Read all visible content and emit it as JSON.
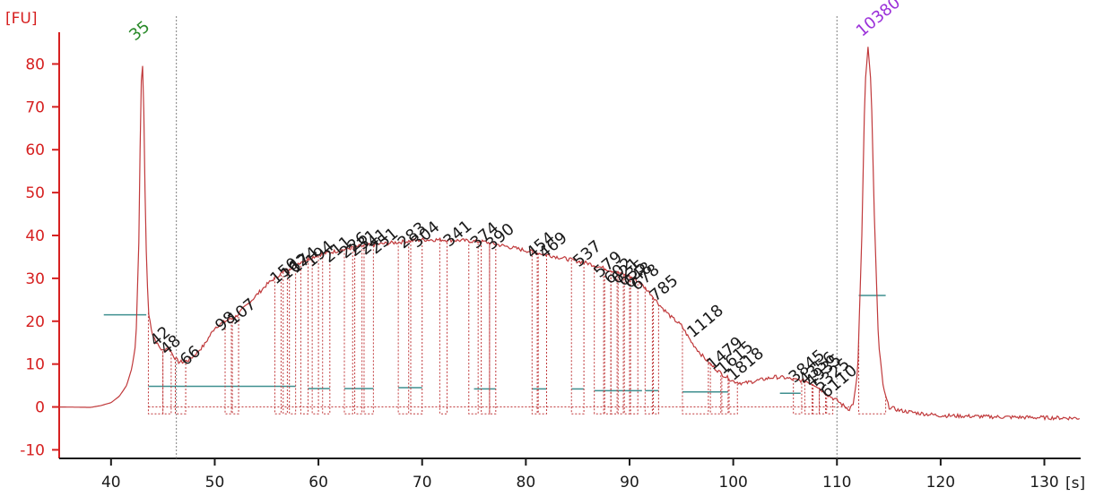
{
  "colors": {
    "axis_y": "#d62020",
    "axis_x": "#1a1a1a",
    "trace": "#c0393b",
    "baseline": "#3f8f8f",
    "lower_marker": "#2a8a2a",
    "upper_marker": "#9b30d9",
    "divider": "#808080"
  },
  "chart_data": {
    "type": "line",
    "title": "",
    "xlabel": "[s]",
    "ylabel": "[FU]",
    "xlim": [
      35,
      133.5
    ],
    "ylim": [
      -12,
      92
    ],
    "x_ticks": [
      40,
      50,
      60,
      70,
      80,
      90,
      100,
      110,
      120,
      130
    ],
    "y_ticks": [
      -10,
      0,
      10,
      20,
      30,
      40,
      50,
      60,
      70,
      80
    ],
    "x_tick_labels": [
      "40",
      "50",
      "60",
      "70",
      "80",
      "90",
      "100",
      "110",
      "120",
      "130"
    ],
    "y_tick_labels": [
      "-10",
      "0",
      "10",
      "20",
      "30",
      "40",
      "50",
      "60",
      "70",
      "80"
    ],
    "grid": false,
    "series": [
      {
        "points": [
          [
            35,
            0
          ],
          [
            38,
            -0.1
          ],
          [
            39,
            0.3
          ],
          [
            40,
            1
          ],
          [
            40.8,
            2.5
          ],
          [
            41.5,
            5
          ],
          [
            42,
            9
          ],
          [
            42.4,
            15
          ],
          [
            42.7,
            40
          ],
          [
            42.85,
            70
          ],
          [
            43,
            83
          ],
          [
            43.15,
            70
          ],
          [
            43.35,
            40
          ],
          [
            43.6,
            22
          ],
          [
            44,
            17
          ],
          [
            44.5,
            14.5
          ],
          [
            45,
            13
          ],
          [
            45.5,
            14
          ],
          [
            46,
            12
          ],
          [
            46.5,
            10.5
          ],
          [
            47,
            10.5
          ],
          [
            47.5,
            11
          ],
          [
            48,
            12
          ],
          [
            49,
            14.5
          ],
          [
            50,
            18.5
          ],
          [
            51,
            20
          ],
          [
            52,
            21
          ],
          [
            53,
            23.5
          ],
          [
            54,
            26
          ],
          [
            55,
            28.5
          ],
          [
            56,
            30.5
          ],
          [
            57,
            32
          ],
          [
            58,
            33.5
          ],
          [
            59,
            34.5
          ],
          [
            60,
            35.5
          ],
          [
            62,
            36.5
          ],
          [
            64,
            37.5
          ],
          [
            66,
            38
          ],
          [
            68,
            38.5
          ],
          [
            70,
            39
          ],
          [
            72,
            39
          ],
          [
            74,
            38.8
          ],
          [
            76,
            38.5
          ],
          [
            78,
            37.5
          ],
          [
            80,
            36.5
          ],
          [
            82,
            35.5
          ],
          [
            84,
            34.5
          ],
          [
            86,
            33.5
          ],
          [
            88,
            32
          ],
          [
            90,
            30.5
          ],
          [
            91,
            29
          ],
          [
            92,
            26.5
          ],
          [
            93,
            23.5
          ],
          [
            94,
            21
          ],
          [
            95,
            19
          ],
          [
            96,
            15
          ],
          [
            97,
            12
          ],
          [
            98,
            9.5
          ],
          [
            99,
            7.5
          ],
          [
            100,
            6
          ],
          [
            101,
            5.5
          ],
          [
            102,
            6
          ],
          [
            103,
            6.5
          ],
          [
            104,
            7
          ],
          [
            105,
            6.8
          ],
          [
            106,
            6.3
          ],
          [
            107,
            6
          ],
          [
            108,
            5
          ],
          [
            109,
            3
          ],
          [
            110,
            1.5
          ],
          [
            110.8,
            0
          ],
          [
            111.2,
            -0.5
          ],
          [
            111.6,
            1
          ],
          [
            112,
            8
          ],
          [
            112.4,
            40
          ],
          [
            112.7,
            75
          ],
          [
            113,
            84
          ],
          [
            113.3,
            75
          ],
          [
            113.6,
            45
          ],
          [
            114,
            15
          ],
          [
            114.5,
            4
          ],
          [
            115,
            0
          ],
          [
            116,
            -0.8
          ],
          [
            118,
            -1.5
          ],
          [
            120,
            -2
          ],
          [
            125,
            -2.3
          ],
          [
            130,
            -2.5
          ],
          [
            133.5,
            -2.6
          ]
        ]
      }
    ],
    "vertical_dividers": [
      46.3,
      110
    ],
    "baseline_lines": [
      {
        "y": 21.5,
        "x": [
          39.3,
          43.4
        ]
      },
      {
        "y": 4.8,
        "x": [
          43.6,
          57.8
        ]
      },
      {
        "y": 4.3,
        "x": [
          59,
          61.1
        ]
      },
      {
        "y": 4.3,
        "x": [
          62.5,
          65.3
        ]
      },
      {
        "y": 4.5,
        "x": [
          67.7,
          70
        ]
      },
      {
        "y": 4.2,
        "x": [
          75,
          77.1
        ]
      },
      {
        "y": 4.2,
        "x": [
          80.6,
          82
        ]
      },
      {
        "y": 4.2,
        "x": [
          84.4,
          85.6
        ]
      },
      {
        "y": 3.8,
        "x": [
          86.6,
          91.2
        ]
      },
      {
        "y": 3.8,
        "x": [
          91.5,
          92.8
        ]
      },
      {
        "y": 3.5,
        "x": [
          95.1,
          99.5
        ]
      },
      {
        "y": 3.2,
        "x": [
          104.5,
          106.5
        ]
      },
      {
        "y": 26,
        "x": [
          112.1,
          114.7
        ]
      }
    ],
    "peak_windows": [
      [
        43.6,
        45
      ],
      [
        45,
        45.8
      ],
      [
        46.2,
        47.2
      ],
      [
        51,
        51.6
      ],
      [
        51.7,
        52.3
      ],
      [
        55.8,
        56.4
      ],
      [
        56.6,
        57
      ],
      [
        57.2,
        57.8
      ],
      [
        58.3,
        59
      ],
      [
        59.4,
        60
      ],
      [
        60.4,
        61.1
      ],
      [
        62.5,
        63.3
      ],
      [
        63.5,
        64.2
      ],
      [
        64.4,
        65.3
      ],
      [
        67.7,
        68.7
      ],
      [
        68.9,
        70
      ],
      [
        71.7,
        72.4
      ],
      [
        74.5,
        75.4
      ],
      [
        75.7,
        76.5
      ],
      [
        76.5,
        77.1
      ],
      [
        80.6,
        81.1
      ],
      [
        81.2,
        82
      ],
      [
        84.4,
        85.6
      ],
      [
        86.6,
        87.5
      ],
      [
        87.6,
        88.2
      ],
      [
        88.2,
        88.8
      ],
      [
        88.9,
        89.4
      ],
      [
        89.5,
        90
      ],
      [
        90.1,
        90.8
      ],
      [
        91.5,
        92.2
      ],
      [
        92.3,
        92.8
      ],
      [
        95.1,
        97.6
      ],
      [
        97.8,
        98.8
      ],
      [
        98.9,
        99.5
      ],
      [
        99.6,
        100.4
      ],
      [
        105.8,
        106.6
      ],
      [
        106.9,
        107.6
      ],
      [
        107.7,
        108.3
      ],
      [
        108.3,
        108.9
      ],
      [
        109,
        109.6
      ],
      [
        112.1,
        114.7
      ]
    ],
    "peak_labels": [
      {
        "text": "42",
        "x": 44.3,
        "y": 14
      },
      {
        "text": "48",
        "x": 45.3,
        "y": 12
      },
      {
        "text": "66",
        "x": 47.2,
        "y": 9.5
      },
      {
        "text": "98",
        "x": 50.6,
        "y": 17.5
      },
      {
        "text": "107",
        "x": 51.8,
        "y": 19
      },
      {
        "text": "150",
        "x": 55.9,
        "y": 28.5
      },
      {
        "text": "162",
        "x": 56.9,
        "y": 29.5
      },
      {
        "text": "174",
        "x": 57.8,
        "y": 31
      },
      {
        "text": "194",
        "x": 59.3,
        "y": 32.5
      },
      {
        "text": "211",
        "x": 61,
        "y": 33.5
      },
      {
        "text": "226",
        "x": 62.6,
        "y": 34.5
      },
      {
        "text": "231",
        "x": 63.5,
        "y": 35
      },
      {
        "text": "241",
        "x": 64.5,
        "y": 35.3
      },
      {
        "text": "251",
        "x": 65.5,
        "y": 35.5
      },
      {
        "text": "283",
        "x": 68.2,
        "y": 36.8
      },
      {
        "text": "304",
        "x": 69.5,
        "y": 37
      },
      {
        "text": "341",
        "x": 72.6,
        "y": 37.2
      },
      {
        "text": "374",
        "x": 75.2,
        "y": 36.8
      },
      {
        "text": "390",
        "x": 76.7,
        "y": 36.5
      },
      {
        "text": "454",
        "x": 80.6,
        "y": 34.5
      },
      {
        "text": "469",
        "x": 81.8,
        "y": 34.5
      },
      {
        "text": "537",
        "x": 85.1,
        "y": 32.5
      },
      {
        "text": "579",
        "x": 87.1,
        "y": 30
      },
      {
        "text": "602",
        "x": 88.1,
        "y": 28.5
      },
      {
        "text": "621",
        "x": 88.8,
        "y": 28.5
      },
      {
        "text": "635",
        "x": 89.4,
        "y": 28
      },
      {
        "text": "648",
        "x": 90,
        "y": 27.5
      },
      {
        "text": "678",
        "x": 90.7,
        "y": 27
      },
      {
        "text": "785",
        "x": 92.5,
        "y": 24.5
      },
      {
        "text": "1118",
        "x": 96.1,
        "y": 16
      },
      {
        "text": "1479",
        "x": 98,
        "y": 8.5
      },
      {
        "text": "1615",
        "x": 99,
        "y": 7.5
      },
      {
        "text": "1818",
        "x": 100,
        "y": 6
      },
      {
        "text": "3845",
        "x": 105.9,
        "y": 5.5
      },
      {
        "text": "4356",
        "x": 106.9,
        "y": 5
      },
      {
        "text": "4935",
        "x": 107.5,
        "y": 4.5
      },
      {
        "text": "5325",
        "x": 108.3,
        "y": 3.5
      },
      {
        "text": "6110",
        "x": 109,
        "y": 2
      }
    ],
    "marker_labels": [
      {
        "text": "35",
        "x": 43,
        "y": 84,
        "role": "lower"
      },
      {
        "text": "10380",
        "x": 113.1,
        "y": 85,
        "role": "upper"
      }
    ]
  }
}
